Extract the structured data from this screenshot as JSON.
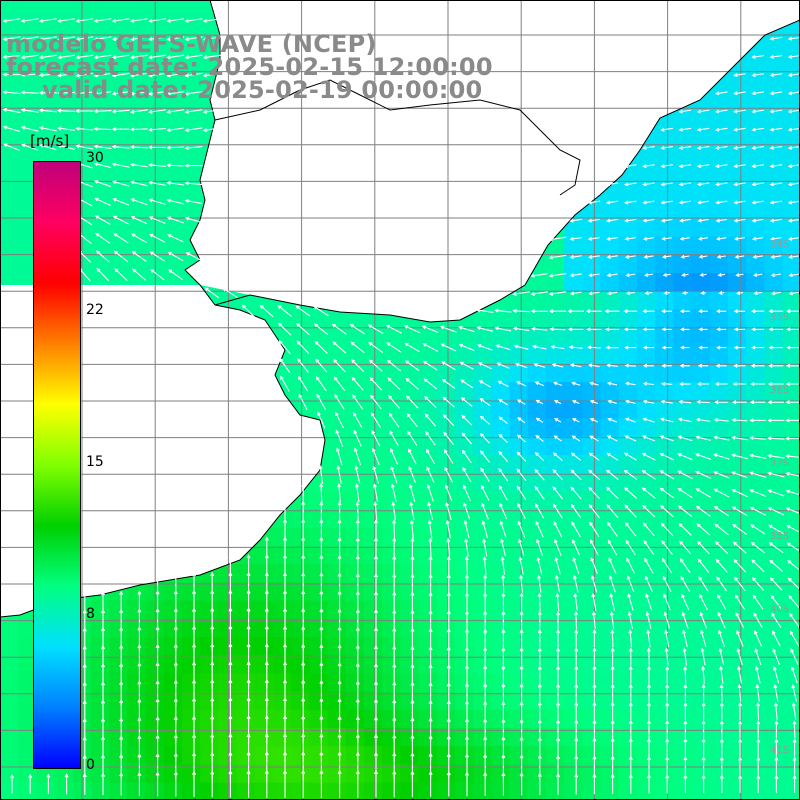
{
  "title": {
    "line1": "modelo GEFS-WAVE (NCEP)",
    "line2": "forecast date: 2025-02-15 12:00:00",
    "line3": "valid date: 2025-02-19 00:00:00"
  },
  "colorbar": {
    "unit": "[m/s]",
    "ticks": [
      "30",
      "22",
      "15",
      "8",
      "0"
    ],
    "tick_values": [
      30,
      22,
      15,
      8,
      0
    ],
    "min": 0,
    "max": 30,
    "colors": [
      "#0000ff",
      "#0080ff",
      "#00e0ff",
      "#00ff80",
      "#00d000",
      "#80ff00",
      "#ffff00",
      "#ff8000",
      "#ff0000",
      "#ff0060",
      "#c0007a"
    ]
  },
  "map": {
    "lat_labels": [
      "34S",
      "35S",
      "36S",
      "37S",
      "38S",
      "40S",
      "41S"
    ],
    "land_color": "#ffffff",
    "grid_color": "#808080",
    "field": "wind speed (m/s) with direction arrows"
  }
}
